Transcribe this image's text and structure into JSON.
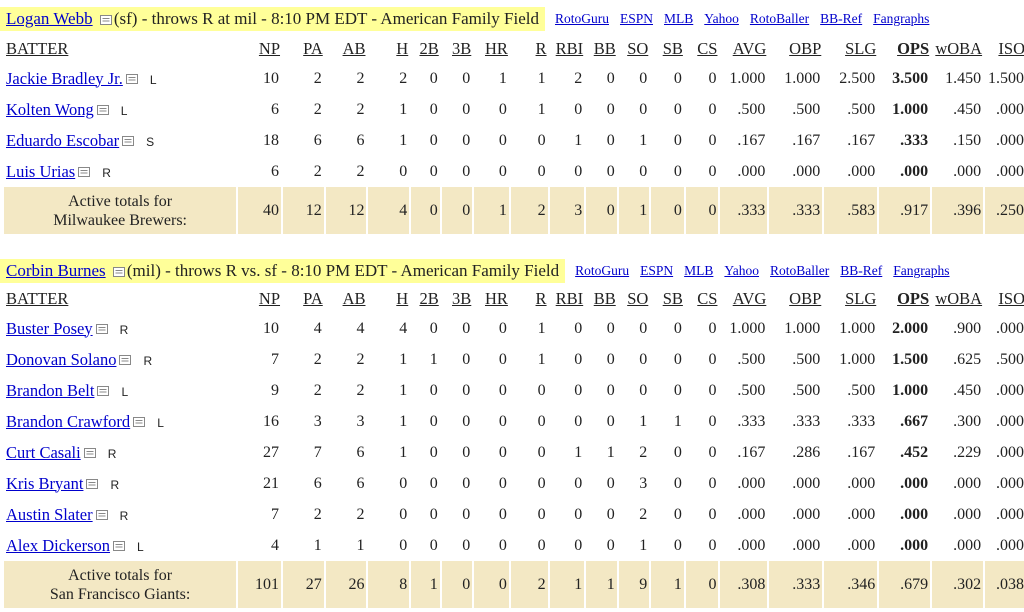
{
  "sections": [
    {
      "pitcher_name": "Logan Webb",
      "pitcher_info": "(sf) - throws R at mil - 8:10 PM EDT - American Family Field",
      "links": [
        "RotoGuru",
        "ESPN",
        "MLB",
        "Yahoo",
        "RotoBaller",
        "BB-Ref",
        "Fangraphs"
      ],
      "columns": [
        "BATTER",
        "NP",
        "PA",
        "AB",
        "H",
        "2B",
        "3B",
        "HR",
        "R",
        "RBI",
        "BB",
        "SO",
        "SB",
        "CS",
        "AVG",
        "OBP",
        "SLG",
        "OPS",
        "wOBA",
        "ISO"
      ],
      "rows": [
        {
          "name": "Jackie Bradley Jr.",
          "hand": "L",
          "stats": [
            "10",
            "2",
            "2",
            "2",
            "0",
            "0",
            "1",
            "1",
            "2",
            "0",
            "0",
            "0",
            "0",
            "1.000",
            "1.000",
            "2.500",
            "3.500",
            "1.450",
            "1.500"
          ]
        },
        {
          "name": "Kolten Wong",
          "hand": "L",
          "stats": [
            "6",
            "2",
            "2",
            "1",
            "0",
            "0",
            "0",
            "1",
            "0",
            "0",
            "0",
            "0",
            "0",
            ".500",
            ".500",
            ".500",
            "1.000",
            ".450",
            ".000"
          ]
        },
        {
          "name": "Eduardo Escobar",
          "hand": "S",
          "stats": [
            "18",
            "6",
            "6",
            "1",
            "0",
            "0",
            "0",
            "0",
            "1",
            "0",
            "1",
            "0",
            "0",
            ".167",
            ".167",
            ".167",
            ".333",
            ".150",
            ".000"
          ]
        },
        {
          "name": "Luis Urias",
          "hand": "R",
          "stats": [
            "6",
            "2",
            "2",
            "0",
            "0",
            "0",
            "0",
            "0",
            "0",
            "0",
            "0",
            "0",
            "0",
            ".000",
            ".000",
            ".000",
            ".000",
            ".000",
            ".000"
          ]
        }
      ],
      "totals_label_1": "Active totals for",
      "totals_label_2": "Milwaukee Brewers:",
      "totals": [
        "40",
        "12",
        "12",
        "4",
        "0",
        "0",
        "1",
        "2",
        "3",
        "0",
        "1",
        "0",
        "0",
        ".333",
        ".333",
        ".583",
        ".917",
        ".396",
        ".250"
      ]
    },
    {
      "pitcher_name": "Corbin Burnes",
      "pitcher_info": "(mil) - throws R vs. sf - 8:10 PM EDT - American Family Field",
      "links": [
        "RotoGuru",
        "ESPN",
        "MLB",
        "Yahoo",
        "RotoBaller",
        "BB-Ref",
        "Fangraphs"
      ],
      "columns": [
        "BATTER",
        "NP",
        "PA",
        "AB",
        "H",
        "2B",
        "3B",
        "HR",
        "R",
        "RBI",
        "BB",
        "SO",
        "SB",
        "CS",
        "AVG",
        "OBP",
        "SLG",
        "OPS",
        "wOBA",
        "ISO"
      ],
      "rows": [
        {
          "name": "Buster Posey",
          "hand": "R",
          "stats": [
            "10",
            "4",
            "4",
            "4",
            "0",
            "0",
            "0",
            "1",
            "0",
            "0",
            "0",
            "0",
            "0",
            "1.000",
            "1.000",
            "1.000",
            "2.000",
            ".900",
            ".000"
          ]
        },
        {
          "name": "Donovan Solano",
          "hand": "R",
          "stats": [
            "7",
            "2",
            "2",
            "1",
            "1",
            "0",
            "0",
            "1",
            "0",
            "0",
            "0",
            "0",
            "0",
            ".500",
            ".500",
            "1.000",
            "1.500",
            ".625",
            ".500"
          ]
        },
        {
          "name": "Brandon Belt",
          "hand": "L",
          "stats": [
            "9",
            "2",
            "2",
            "1",
            "0",
            "0",
            "0",
            "0",
            "0",
            "0",
            "0",
            "0",
            "0",
            ".500",
            ".500",
            ".500",
            "1.000",
            ".450",
            ".000"
          ]
        },
        {
          "name": "Brandon Crawford",
          "hand": "L",
          "stats": [
            "16",
            "3",
            "3",
            "1",
            "0",
            "0",
            "0",
            "0",
            "0",
            "0",
            "1",
            "1",
            "0",
            ".333",
            ".333",
            ".333",
            ".667",
            ".300",
            ".000"
          ]
        },
        {
          "name": "Curt Casali",
          "hand": "R",
          "stats": [
            "27",
            "7",
            "6",
            "1",
            "0",
            "0",
            "0",
            "0",
            "1",
            "1",
            "2",
            "0",
            "0",
            ".167",
            ".286",
            ".167",
            ".452",
            ".229",
            ".000"
          ]
        },
        {
          "name": "Kris Bryant",
          "hand": "R",
          "stats": [
            "21",
            "6",
            "6",
            "0",
            "0",
            "0",
            "0",
            "0",
            "0",
            "0",
            "3",
            "0",
            "0",
            ".000",
            ".000",
            ".000",
            ".000",
            ".000",
            ".000"
          ]
        },
        {
          "name": "Austin Slater",
          "hand": "R",
          "stats": [
            "7",
            "2",
            "2",
            "0",
            "0",
            "0",
            "0",
            "0",
            "0",
            "0",
            "2",
            "0",
            "0",
            ".000",
            ".000",
            ".000",
            ".000",
            ".000",
            ".000"
          ]
        },
        {
          "name": "Alex Dickerson",
          "hand": "L",
          "stats": [
            "4",
            "1",
            "1",
            "0",
            "0",
            "0",
            "0",
            "0",
            "0",
            "0",
            "1",
            "0",
            "0",
            ".000",
            ".000",
            ".000",
            ".000",
            ".000",
            ".000"
          ]
        }
      ],
      "totals_label_1": "Active totals for",
      "totals_label_2": "San Francisco Giants:",
      "totals": [
        "101",
        "27",
        "26",
        "8",
        "1",
        "0",
        "0",
        "2",
        "1",
        "1",
        "9",
        "1",
        "0",
        ".308",
        ".333",
        ".346",
        ".679",
        ".302",
        ".038"
      ]
    }
  ]
}
